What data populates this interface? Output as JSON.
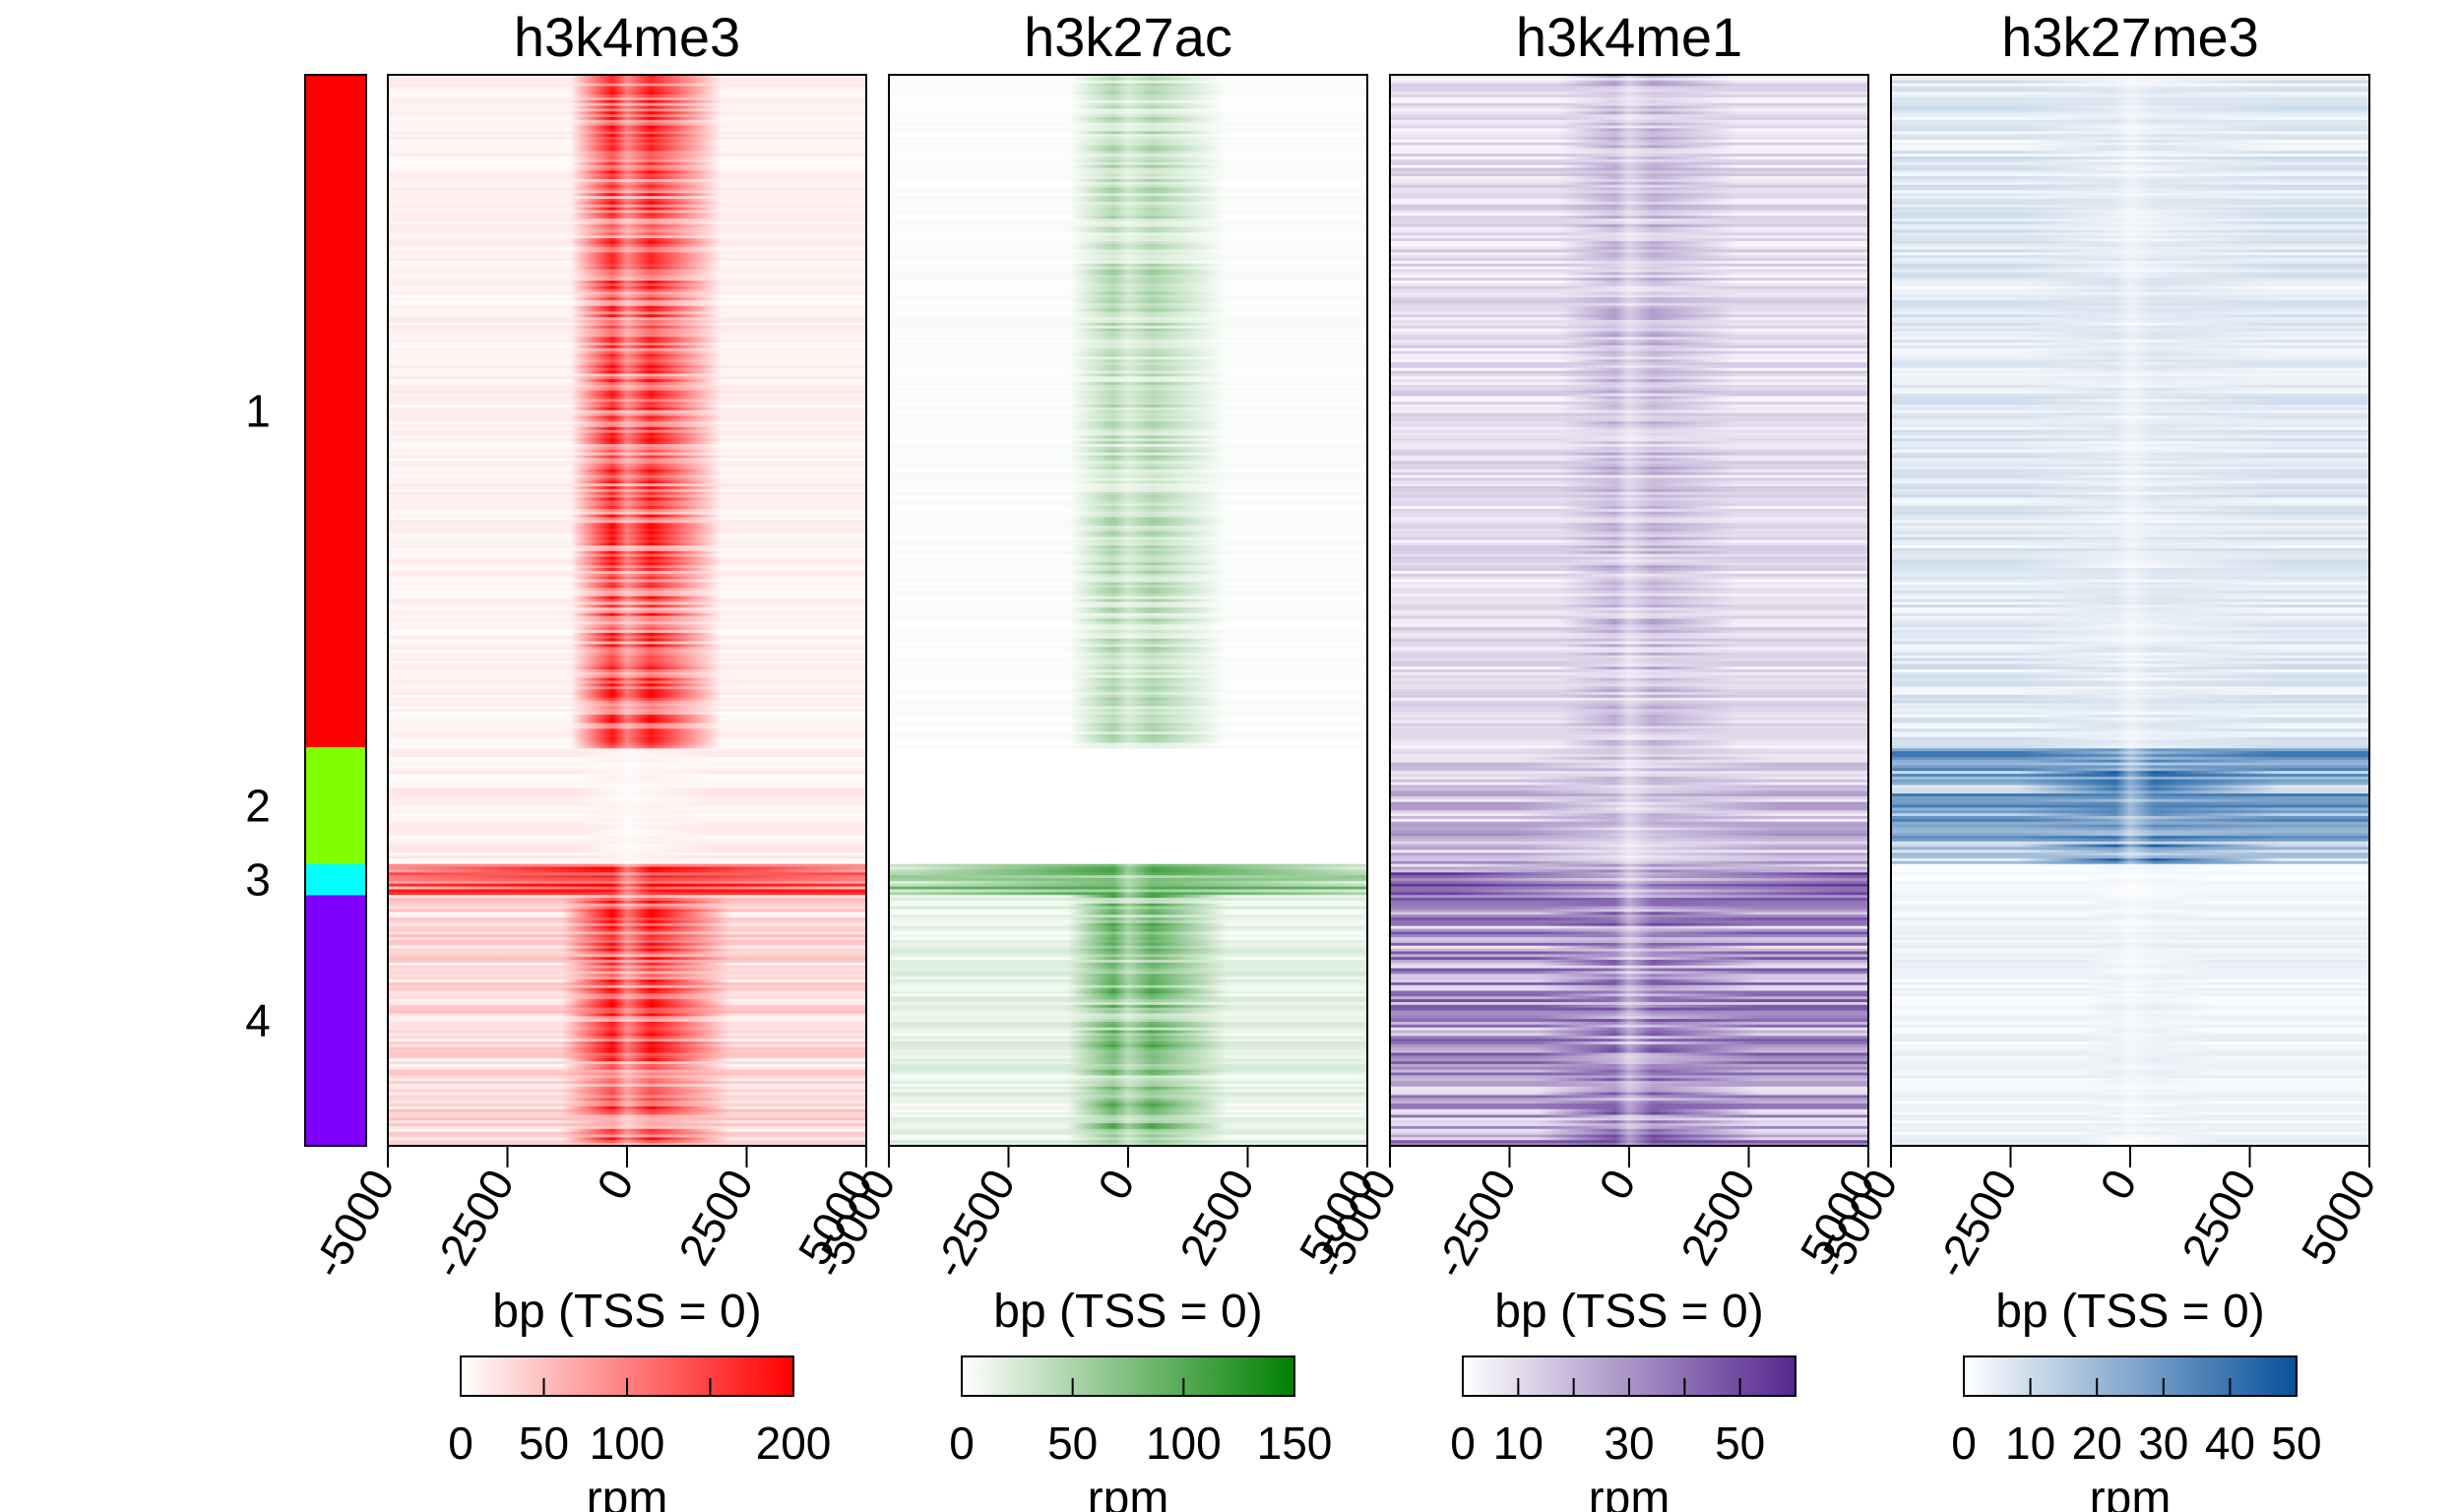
{
  "chart_data": {
    "type": "heatmap",
    "x_axis": {
      "label": "bp (TSS = 0)",
      "range": [
        -5000,
        5000
      ],
      "ticks": [
        -5000,
        -2500,
        0,
        2500,
        5000
      ],
      "tick_labels": [
        "-5000",
        "-2500",
        "0",
        "2500",
        "5000"
      ]
    },
    "clusters": [
      {
        "label": "1",
        "color": "#ff0000",
        "fraction": 0.628
      },
      {
        "label": "2",
        "color": "#80ff00",
        "fraction": 0.109
      },
      {
        "label": "3",
        "color": "#00ffff",
        "fraction": 0.029
      },
      {
        "label": "4",
        "color": "#8000ff",
        "fraction": 0.234
      }
    ],
    "panels": [
      {
        "title": "h3k4me3",
        "color": "#ff0000",
        "colorbar": {
          "label": "rpm",
          "min": 0,
          "max": 200,
          "ticks": [
            0,
            50,
            100,
            150,
            200
          ],
          "tick_labels": [
            "0",
            "50",
            "100",
            "",
            "200"
          ]
        },
        "cluster_signal": [
          {
            "center": 0.85,
            "spread": 0.04,
            "background": 0.05
          },
          {
            "center": 0.05,
            "spread": 0.0,
            "background": 0.06
          },
          {
            "center": 0.9,
            "spread": 0.9,
            "background": 0.6
          },
          {
            "center": 0.8,
            "spread": 0.08,
            "background": 0.15
          }
        ]
      },
      {
        "title": "h3k27ac",
        "color": "#008000",
        "colorbar": {
          "label": "rpm",
          "min": 0,
          "max": 150,
          "ticks": [
            0,
            50,
            100,
            150
          ],
          "tick_labels": [
            "0",
            "50",
            "100",
            "150"
          ]
        },
        "cluster_signal": [
          {
            "center": 0.3,
            "spread": 0.05,
            "background": 0.02
          },
          {
            "center": 0.0,
            "spread": 0.0,
            "background": 0.01
          },
          {
            "center": 0.7,
            "spread": 0.8,
            "background": 0.35
          },
          {
            "center": 0.55,
            "spread": 0.06,
            "background": 0.1
          }
        ]
      },
      {
        "title": "h3k4me1",
        "color": "#54278f",
        "colorbar": {
          "label": "rpm",
          "min": 0,
          "max": 60,
          "ticks": [
            0,
            10,
            20,
            30,
            40,
            50,
            60
          ],
          "tick_labels": [
            "0",
            "10",
            "",
            "30",
            "",
            "50",
            ""
          ]
        },
        "cluster_signal": [
          {
            "center": 0.35,
            "spread": 0.1,
            "background": 0.15
          },
          {
            "center": 0.3,
            "spread": 0.3,
            "background": 0.3
          },
          {
            "center": 0.6,
            "spread": 0.6,
            "background": 0.55
          },
          {
            "center": 0.65,
            "spread": 0.2,
            "background": 0.45
          }
        ]
      },
      {
        "title": "h3k27me3",
        "color": "#08519c",
        "colorbar": {
          "label": "rpm",
          "min": 0,
          "max": 50,
          "ticks": [
            0,
            10,
            20,
            30,
            40,
            50
          ],
          "tick_labels": [
            "0",
            "10",
            "20",
            "30",
            "40",
            "50"
          ]
        },
        "cluster_signal": [
          {
            "center": 0.12,
            "spread": 0.3,
            "background": 0.12
          },
          {
            "center": 0.7,
            "spread": 0.3,
            "background": 0.45
          },
          {
            "center": 0.05,
            "spread": 0.0,
            "background": 0.04
          },
          {
            "center": 0.08,
            "spread": 0.0,
            "background": 0.06
          }
        ]
      }
    ]
  }
}
